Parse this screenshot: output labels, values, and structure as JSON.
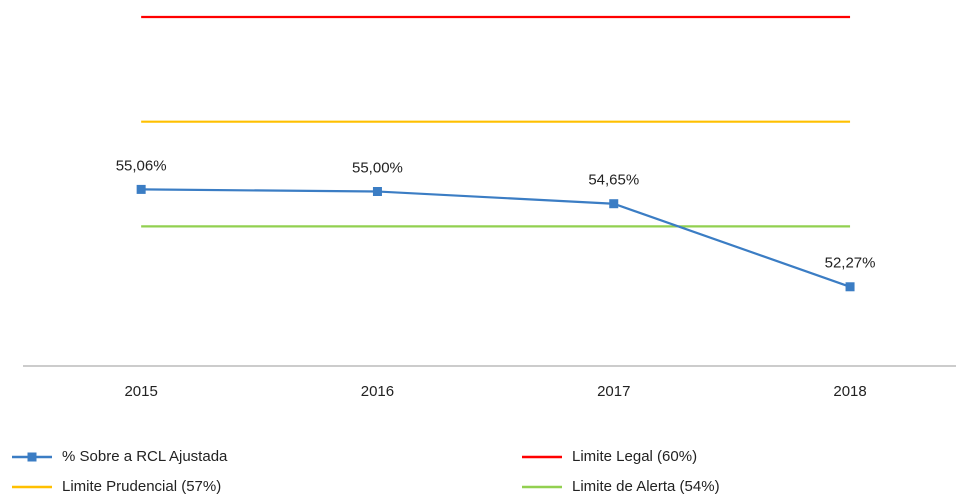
{
  "chart_data": {
    "type": "line",
    "categories": [
      "2015",
      "2016",
      "2017",
      "2018"
    ],
    "series": [
      {
        "name": "% Sobre a RCL Ajustada",
        "color": "#3b7dc4",
        "values": [
          55.06,
          55.0,
          54.65,
          52.27
        ],
        "value_labels": [
          "55,06%",
          "55,00%",
          "54,65%",
          "52,27%"
        ],
        "marker": "square"
      },
      {
        "name": "Limite Legal (60%)",
        "color": "#ff0000",
        "values": [
          60,
          60,
          60,
          60
        ]
      },
      {
        "name": "Limite Prudencial (57%)",
        "color": "#ffc000",
        "values": [
          57,
          57,
          57,
          57
        ]
      },
      {
        "name": "Limite de Alerta (54%)",
        "color": "#92d050",
        "values": [
          54,
          54,
          54,
          54
        ]
      }
    ],
    "ylim": [
      50,
      60
    ],
    "grid": false
  }
}
